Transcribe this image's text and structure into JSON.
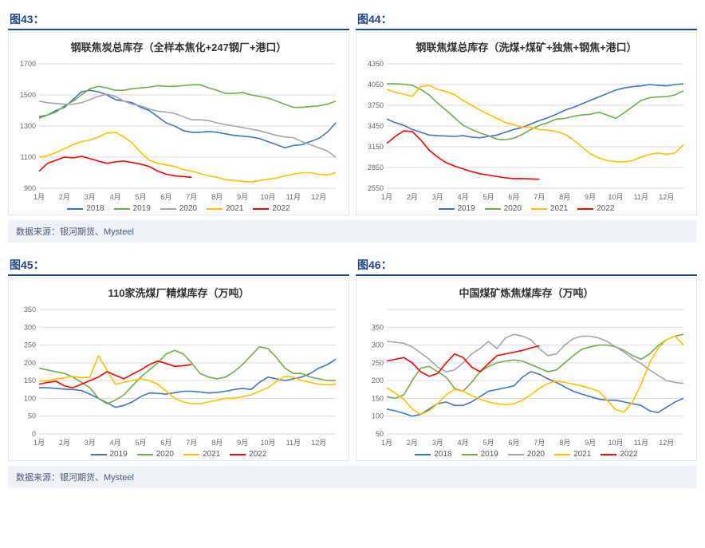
{
  "sources": [
    {
      "label_a": "图43：",
      "label_b": "图44：",
      "text": "数据来源：银河期货、Mysteel"
    },
    {
      "label_a": "图45：",
      "label_b": "图46：",
      "text": "数据来源：银河期货、Mysteel"
    }
  ],
  "axis_months": [
    "1月",
    "2月",
    "3月",
    "4月",
    "5月",
    "6月",
    "7月",
    "8月",
    "9月",
    "10月",
    "11月",
    "12月"
  ],
  "grid_color": "#d9d9d9",
  "axis_text_color": "#666666",
  "chart43": {
    "title": "钢联焦炭总库存（全样本焦化+247钢厂+港口）",
    "ylim": [
      900,
      1700
    ],
    "ytick_step": 200,
    "series": [
      {
        "name": "2018",
        "color": "#4472c4",
        "data": [
          1360,
          1370,
          1400,
          1420,
          1470,
          1520,
          1530,
          1520,
          1500,
          1470,
          1460,
          1450,
          1420,
          1400,
          1360,
          1320,
          1300,
          1270,
          1260,
          1260,
          1265,
          1260,
          1250,
          1240,
          1235,
          1230,
          1220,
          1200,
          1180,
          1160,
          1175,
          1180,
          1200,
          1220,
          1260,
          1320
        ]
      },
      {
        "name": "2019",
        "color": "#70ad47",
        "data": [
          1350,
          1370,
          1390,
          1430,
          1460,
          1500,
          1540,
          1555,
          1545,
          1530,
          1530,
          1540,
          1545,
          1550,
          1560,
          1555,
          1555,
          1560,
          1565,
          1565,
          1545,
          1530,
          1510,
          1510,
          1515,
          1500,
          1490,
          1480,
          1460,
          1440,
          1420,
          1420,
          1425,
          1430,
          1440,
          1460
        ]
      },
      {
        "name": "2020",
        "color": "#a6a6a6",
        "data": [
          1460,
          1450,
          1445,
          1440,
          1440,
          1450,
          1470,
          1490,
          1505,
          1490,
          1460,
          1440,
          1430,
          1410,
          1395,
          1390,
          1380,
          1360,
          1340,
          1340,
          1335,
          1320,
          1310,
          1300,
          1290,
          1280,
          1270,
          1255,
          1240,
          1230,
          1225,
          1200,
          1180,
          1160,
          1140,
          1100
        ]
      },
      {
        "name": "2021",
        "color": "#ffc000",
        "data": [
          1100,
          1110,
          1130,
          1155,
          1180,
          1200,
          1210,
          1230,
          1255,
          1260,
          1230,
          1190,
          1130,
          1080,
          1060,
          1050,
          1040,
          1020,
          1010,
          995,
          980,
          970,
          955,
          950,
          945,
          940,
          950,
          958,
          965,
          980,
          990,
          1000,
          1000,
          990,
          985,
          1000
        ]
      },
      {
        "name": "2022",
        "color": "#ff0000",
        "data": [
          1010,
          1060,
          1080,
          1100,
          1095,
          1105,
          1090,
          1075,
          1060,
          1070,
          1075,
          1065,
          1055,
          1040,
          1010,
          990,
          980,
          975,
          970
        ]
      }
    ]
  },
  "chart44": {
    "title": "钢联焦煤总库存（洗煤+煤矿+独焦+钢焦+港口）",
    "ylim": [
      2550,
      4350
    ],
    "ytick_step": 300,
    "series": [
      {
        "name": "2019",
        "color": "#4472c4",
        "data": [
          3550,
          3500,
          3460,
          3400,
          3360,
          3320,
          3310,
          3305,
          3300,
          3310,
          3290,
          3280,
          3300,
          3320,
          3360,
          3400,
          3430,
          3480,
          3530,
          3570,
          3620,
          3680,
          3720,
          3770,
          3820,
          3870,
          3920,
          3970,
          4000,
          4020,
          4030,
          4050,
          4040,
          4030,
          4050,
          4060
        ]
      },
      {
        "name": "2020",
        "color": "#70ad47",
        "data": [
          4060,
          4060,
          4055,
          4040,
          3980,
          3900,
          3780,
          3680,
          3570,
          3460,
          3400,
          3350,
          3310,
          3260,
          3250,
          3275,
          3330,
          3400,
          3460,
          3500,
          3550,
          3560,
          3590,
          3610,
          3620,
          3650,
          3610,
          3560,
          3640,
          3730,
          3820,
          3860,
          3870,
          3875,
          3900,
          3960
        ]
      },
      {
        "name": "2021",
        "color": "#ffc000",
        "data": [
          3980,
          3940,
          3910,
          3880,
          4020,
          4040,
          3980,
          3950,
          3900,
          3820,
          3750,
          3680,
          3620,
          3560,
          3500,
          3470,
          3430,
          3430,
          3400,
          3390,
          3370,
          3330,
          3250,
          3150,
          3050,
          2990,
          2950,
          2935,
          2930,
          2950,
          3000,
          3040,
          3060,
          3040,
          3060,
          3180
        ]
      },
      {
        "name": "2022",
        "color": "#ff0000",
        "data": [
          3200,
          3300,
          3380,
          3370,
          3250,
          3100,
          3000,
          2920,
          2870,
          2830,
          2790,
          2760,
          2740,
          2720,
          2700,
          2690,
          2690,
          2685,
          2680
        ]
      }
    ]
  },
  "chart45": {
    "title": "110家洗煤厂精煤库存（万吨）",
    "ylim": [
      0,
      350
    ],
    "ytick_step": 50,
    "series": [
      {
        "name": "2019",
        "color": "#4472c4",
        "data": [
          130,
          130,
          128,
          126,
          125,
          122,
          112,
          100,
          88,
          75,
          80,
          90,
          105,
          115,
          114,
          112,
          116,
          120,
          120,
          118,
          115,
          117,
          120,
          125,
          128,
          125,
          145,
          160,
          155,
          150,
          155,
          160,
          170,
          185,
          195,
          210
        ]
      },
      {
        "name": "2020",
        "color": "#70ad47",
        "data": [
          185,
          180,
          175,
          170,
          160,
          145,
          130,
          100,
          85,
          95,
          110,
          135,
          160,
          180,
          200,
          225,
          235,
          225,
          200,
          170,
          160,
          155,
          160,
          175,
          195,
          220,
          245,
          240,
          215,
          185,
          170,
          170,
          160,
          155,
          150,
          150
        ]
      },
      {
        "name": "2021",
        "color": "#ffc000",
        "data": [
          148,
          150,
          155,
          158,
          162,
          158,
          160,
          220,
          180,
          140,
          145,
          150,
          155,
          150,
          140,
          120,
          100,
          90,
          85,
          85,
          90,
          95,
          100,
          100,
          105,
          110,
          120,
          130,
          148,
          162,
          160,
          150,
          145,
          140,
          138,
          140
        ]
      },
      {
        "name": "2022",
        "color": "#ff0000",
        "data": [
          140,
          145,
          148,
          135,
          130,
          140,
          150,
          160,
          175,
          165,
          155,
          168,
          180,
          195,
          205,
          198,
          190,
          192,
          195
        ]
      }
    ]
  },
  "chart46": {
    "title": "中国煤矿炼焦煤库存（万吨）",
    "ylim": [
      50,
      400
    ],
    "ytick_step": 50,
    "hide_top_tick": true,
    "series": [
      {
        "name": "2018",
        "color": "#4472c4",
        "data": [
          120,
          115,
          108,
          100,
          105,
          120,
          135,
          140,
          130,
          130,
          140,
          155,
          170,
          175,
          180,
          185,
          210,
          225,
          218,
          205,
          195,
          182,
          170,
          162,
          155,
          148,
          145,
          145,
          140,
          135,
          130,
          115,
          110,
          125,
          140,
          150
        ]
      },
      {
        "name": "2019",
        "color": "#70ad47",
        "data": [
          155,
          150,
          160,
          200,
          235,
          240,
          225,
          210,
          178,
          170,
          195,
          225,
          240,
          250,
          255,
          258,
          255,
          245,
          235,
          225,
          230,
          250,
          270,
          288,
          295,
          300,
          300,
          295,
          285,
          270,
          260,
          275,
          298,
          315,
          325,
          330
        ]
      },
      {
        "name": "2020",
        "color": "#a6a6a6",
        "data": [
          310,
          308,
          305,
          295,
          278,
          260,
          238,
          225,
          230,
          250,
          275,
          290,
          310,
          290,
          320,
          330,
          325,
          315,
          290,
          270,
          275,
          300,
          318,
          325,
          325,
          320,
          310,
          295,
          280,
          262,
          248,
          230,
          215,
          200,
          195,
          192
        ]
      },
      {
        "name": "2021",
        "color": "#ffc000",
        "data": [
          180,
          165,
          148,
          120,
          105,
          115,
          135,
          160,
          175,
          170,
          158,
          148,
          140,
          135,
          132,
          135,
          145,
          160,
          178,
          192,
          198,
          195,
          190,
          185,
          178,
          170,
          145,
          118,
          112,
          140,
          190,
          250,
          290,
          315,
          325,
          300
        ]
      },
      {
        "name": "2022",
        "color": "#ff0000",
        "data": [
          255,
          260,
          265,
          250,
          225,
          212,
          220,
          250,
          275,
          265,
          238,
          225,
          248,
          270,
          275,
          280,
          285,
          292,
          298
        ]
      }
    ]
  }
}
